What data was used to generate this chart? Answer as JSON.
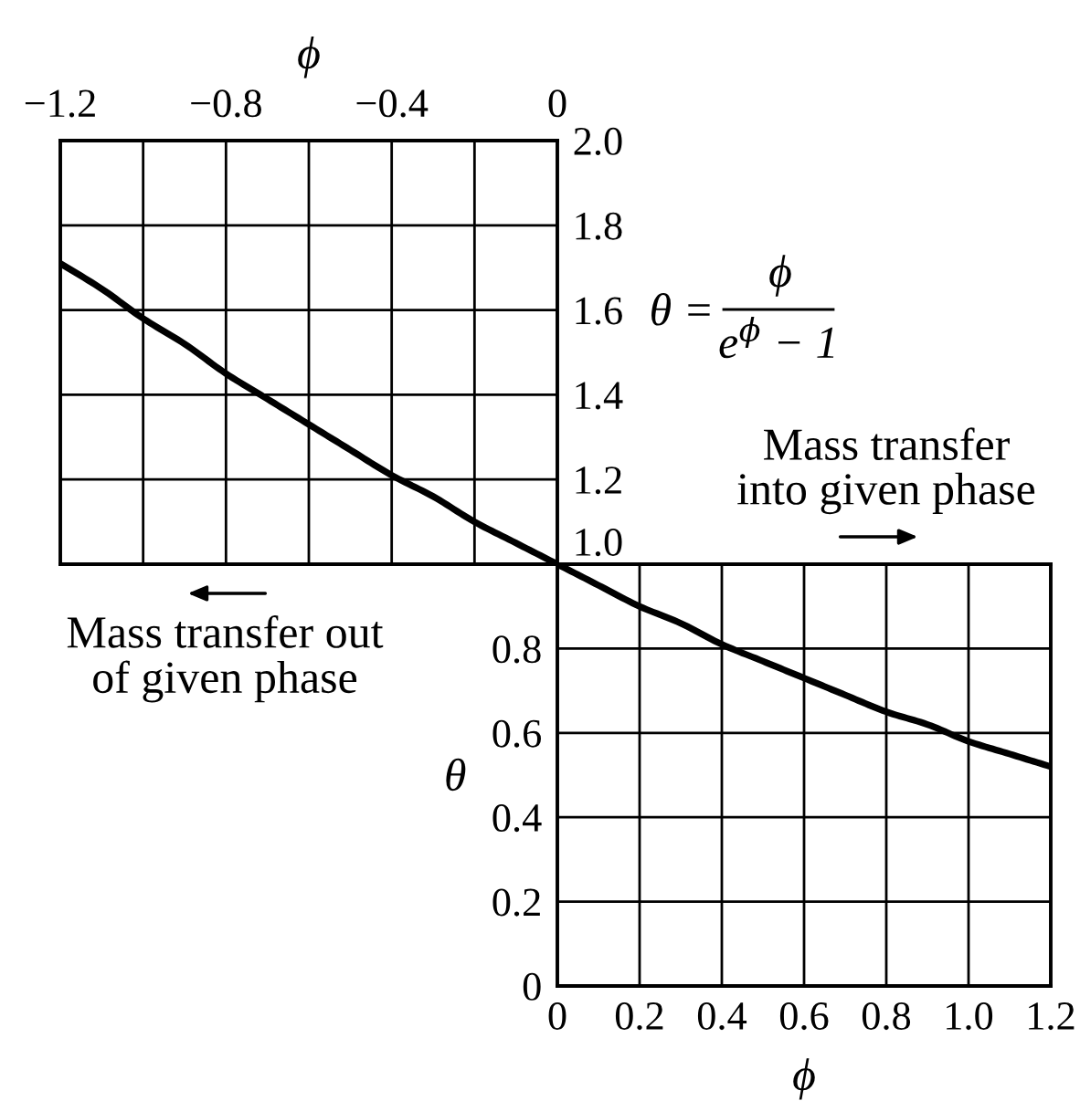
{
  "chart_data": [
    {
      "type": "line",
      "xlabel": "ϕ",
      "xlim": [
        -1.2,
        0
      ],
      "xticks": [
        {
          "value": -1.2,
          "label": "−1.2"
        },
        {
          "value": -1.0,
          "label": null
        },
        {
          "value": -0.8,
          "label": "−0.8"
        },
        {
          "value": -0.6,
          "label": null
        },
        {
          "value": -0.4,
          "label": "−0.4"
        },
        {
          "value": -0.2,
          "label": null
        },
        0
      ],
      "ylim": [
        1.0,
        2.0
      ],
      "yticks": [
        {
          "value": 1,
          "label": "1.0"
        },
        1.2,
        1.4,
        1.6,
        1.8,
        {
          "value": 2,
          "label": "2.0"
        }
      ],
      "grid": true,
      "x": [
        -1.2,
        -1.1,
        -1.0,
        -0.9,
        -0.8,
        -0.7,
        -0.6,
        -0.5,
        -0.4,
        -0.3,
        -0.2,
        -0.1,
        0
      ],
      "series": [
        {
          "color": "#000000",
          "values": [
            1.71,
            1.65,
            1.58,
            1.52,
            1.45,
            1.39,
            1.33,
            1.27,
            1.21,
            1.16,
            1.1,
            1.05,
            1.0
          ]
        }
      ],
      "annotations": [
        "θ =",
        "ϕ",
        "e$^{ϕ}$ − 1",
        "Mass transfer out\nof given phase"
      ]
    },
    {
      "type": "line",
      "xlabel": "ϕ",
      "ylabel": "θ",
      "xlim": [
        0,
        1.2
      ],
      "xticks": [
        0,
        0.2,
        0.4,
        0.6,
        0.8,
        {
          "value": 1,
          "label": "1.0"
        },
        1.2
      ],
      "ylim": [
        0,
        1.0
      ],
      "yticks": [
        0,
        0.2,
        0.4,
        0.6,
        0.8
      ],
      "grid": true,
      "x": [
        0,
        0.1,
        0.2,
        0.3,
        0.4,
        0.5,
        0.6,
        0.7,
        0.8,
        0.9,
        1.0,
        1.1,
        1.2
      ],
      "series": [
        {
          "color": "#000000",
          "values": [
            1.0,
            0.95,
            0.9,
            0.86,
            0.81,
            0.77,
            0.73,
            0.69,
            0.65,
            0.62,
            0.58,
            0.55,
            0.52
          ]
        }
      ],
      "annotations": [
        "Mass transfer\ninto given phase"
      ]
    }
  ]
}
